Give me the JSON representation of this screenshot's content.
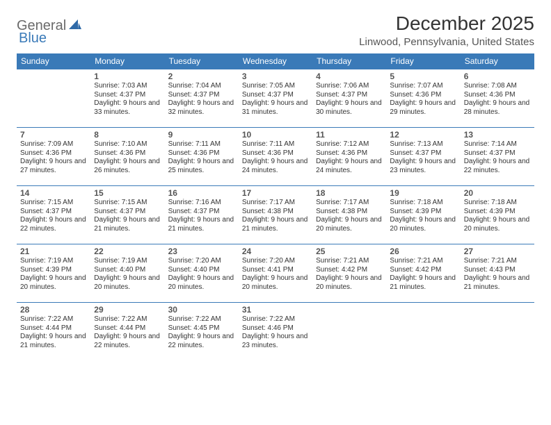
{
  "logo": {
    "part1": "General",
    "part2": "Blue"
  },
  "title": "December 2025",
  "location": "Linwood, Pennsylvania, United States",
  "colors": {
    "header_bg": "#3a7ab8",
    "header_fg": "#ffffff",
    "rule": "#3a7ab8",
    "text": "#333333",
    "muted": "#555555",
    "logo_gray": "#6a6a6a",
    "logo_blue": "#3a7ab8",
    "page_bg": "#ffffff"
  },
  "weekdays": [
    "Sunday",
    "Monday",
    "Tuesday",
    "Wednesday",
    "Thursday",
    "Friday",
    "Saturday"
  ],
  "weeks": [
    [
      null,
      {
        "n": "1",
        "sr": "7:03 AM",
        "ss": "4:37 PM",
        "dl": "9 hours and 33 minutes."
      },
      {
        "n": "2",
        "sr": "7:04 AM",
        "ss": "4:37 PM",
        "dl": "9 hours and 32 minutes."
      },
      {
        "n": "3",
        "sr": "7:05 AM",
        "ss": "4:37 PM",
        "dl": "9 hours and 31 minutes."
      },
      {
        "n": "4",
        "sr": "7:06 AM",
        "ss": "4:37 PM",
        "dl": "9 hours and 30 minutes."
      },
      {
        "n": "5",
        "sr": "7:07 AM",
        "ss": "4:36 PM",
        "dl": "9 hours and 29 minutes."
      },
      {
        "n": "6",
        "sr": "7:08 AM",
        "ss": "4:36 PM",
        "dl": "9 hours and 28 minutes."
      }
    ],
    [
      {
        "n": "7",
        "sr": "7:09 AM",
        "ss": "4:36 PM",
        "dl": "9 hours and 27 minutes."
      },
      {
        "n": "8",
        "sr": "7:10 AM",
        "ss": "4:36 PM",
        "dl": "9 hours and 26 minutes."
      },
      {
        "n": "9",
        "sr": "7:11 AM",
        "ss": "4:36 PM",
        "dl": "9 hours and 25 minutes."
      },
      {
        "n": "10",
        "sr": "7:11 AM",
        "ss": "4:36 PM",
        "dl": "9 hours and 24 minutes."
      },
      {
        "n": "11",
        "sr": "7:12 AM",
        "ss": "4:36 PM",
        "dl": "9 hours and 24 minutes."
      },
      {
        "n": "12",
        "sr": "7:13 AM",
        "ss": "4:37 PM",
        "dl": "9 hours and 23 minutes."
      },
      {
        "n": "13",
        "sr": "7:14 AM",
        "ss": "4:37 PM",
        "dl": "9 hours and 22 minutes."
      }
    ],
    [
      {
        "n": "14",
        "sr": "7:15 AM",
        "ss": "4:37 PM",
        "dl": "9 hours and 22 minutes."
      },
      {
        "n": "15",
        "sr": "7:15 AM",
        "ss": "4:37 PM",
        "dl": "9 hours and 21 minutes."
      },
      {
        "n": "16",
        "sr": "7:16 AM",
        "ss": "4:37 PM",
        "dl": "9 hours and 21 minutes."
      },
      {
        "n": "17",
        "sr": "7:17 AM",
        "ss": "4:38 PM",
        "dl": "9 hours and 21 minutes."
      },
      {
        "n": "18",
        "sr": "7:17 AM",
        "ss": "4:38 PM",
        "dl": "9 hours and 20 minutes."
      },
      {
        "n": "19",
        "sr": "7:18 AM",
        "ss": "4:39 PM",
        "dl": "9 hours and 20 minutes."
      },
      {
        "n": "20",
        "sr": "7:18 AM",
        "ss": "4:39 PM",
        "dl": "9 hours and 20 minutes."
      }
    ],
    [
      {
        "n": "21",
        "sr": "7:19 AM",
        "ss": "4:39 PM",
        "dl": "9 hours and 20 minutes."
      },
      {
        "n": "22",
        "sr": "7:19 AM",
        "ss": "4:40 PM",
        "dl": "9 hours and 20 minutes."
      },
      {
        "n": "23",
        "sr": "7:20 AM",
        "ss": "4:40 PM",
        "dl": "9 hours and 20 minutes."
      },
      {
        "n": "24",
        "sr": "7:20 AM",
        "ss": "4:41 PM",
        "dl": "9 hours and 20 minutes."
      },
      {
        "n": "25",
        "sr": "7:21 AM",
        "ss": "4:42 PM",
        "dl": "9 hours and 20 minutes."
      },
      {
        "n": "26",
        "sr": "7:21 AM",
        "ss": "4:42 PM",
        "dl": "9 hours and 21 minutes."
      },
      {
        "n": "27",
        "sr": "7:21 AM",
        "ss": "4:43 PM",
        "dl": "9 hours and 21 minutes."
      }
    ],
    [
      {
        "n": "28",
        "sr": "7:22 AM",
        "ss": "4:44 PM",
        "dl": "9 hours and 21 minutes."
      },
      {
        "n": "29",
        "sr": "7:22 AM",
        "ss": "4:44 PM",
        "dl": "9 hours and 22 minutes."
      },
      {
        "n": "30",
        "sr": "7:22 AM",
        "ss": "4:45 PM",
        "dl": "9 hours and 22 minutes."
      },
      {
        "n": "31",
        "sr": "7:22 AM",
        "ss": "4:46 PM",
        "dl": "9 hours and 23 minutes."
      },
      null,
      null,
      null
    ]
  ],
  "labels": {
    "sunrise": "Sunrise: ",
    "sunset": "Sunset: ",
    "daylight": "Daylight: "
  }
}
